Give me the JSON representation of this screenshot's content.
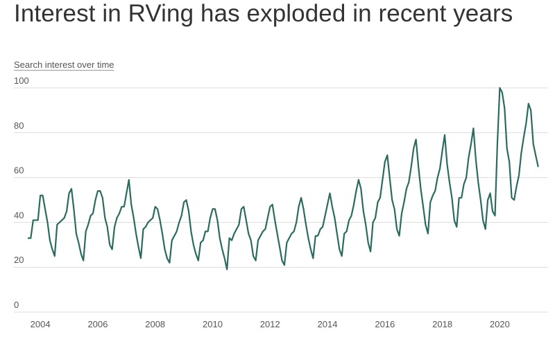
{
  "title": "Interest in RVing has exploded in recent years",
  "subtitle": "Search interest over time",
  "colors": {
    "line": "#2a6b5e",
    "grid": "#dcdcdc",
    "text": "#555555",
    "title": "#333333"
  },
  "chart_data": {
    "type": "line",
    "title": "Interest in RVing has exploded in recent years",
    "subtitle": "Search interest over time",
    "xlabel": "",
    "ylabel": "",
    "ylim": [
      0,
      100
    ],
    "xlim": [
      "2003-06",
      "2021-06"
    ],
    "grid": true,
    "legend": "none",
    "y_ticks": [
      0,
      20,
      40,
      60,
      80,
      100
    ],
    "x_ticks": [
      "2004",
      "2006",
      "2008",
      "2010",
      "2012",
      "2014",
      "2016",
      "2018",
      "2020"
    ],
    "x": [
      "2003-08",
      "2003-09",
      "2003-10",
      "2003-11",
      "2003-12",
      "2004-01",
      "2004-02",
      "2004-03",
      "2004-04",
      "2004-05",
      "2004-06",
      "2004-07",
      "2004-08",
      "2004-09",
      "2004-10",
      "2004-11",
      "2004-12",
      "2005-01",
      "2005-02",
      "2005-03",
      "2005-04",
      "2005-05",
      "2005-06",
      "2005-07",
      "2005-08",
      "2005-09",
      "2005-10",
      "2005-11",
      "2005-12",
      "2006-01",
      "2006-02",
      "2006-03",
      "2006-04",
      "2006-05",
      "2006-06",
      "2006-07",
      "2006-08",
      "2006-09",
      "2006-10",
      "2006-11",
      "2006-12",
      "2007-01",
      "2007-02",
      "2007-03",
      "2007-04",
      "2007-05",
      "2007-06",
      "2007-07",
      "2007-08",
      "2007-09",
      "2007-10",
      "2007-11",
      "2007-12",
      "2008-01",
      "2008-02",
      "2008-03",
      "2008-04",
      "2008-05",
      "2008-06",
      "2008-07",
      "2008-08",
      "2008-09",
      "2008-10",
      "2008-11",
      "2008-12",
      "2009-01",
      "2009-02",
      "2009-03",
      "2009-04",
      "2009-05",
      "2009-06",
      "2009-07",
      "2009-08",
      "2009-09",
      "2009-10",
      "2009-11",
      "2009-12",
      "2010-01",
      "2010-02",
      "2010-03",
      "2010-04",
      "2010-05",
      "2010-06",
      "2010-07",
      "2010-08",
      "2010-09",
      "2010-10",
      "2010-11",
      "2010-12",
      "2011-01",
      "2011-02",
      "2011-03",
      "2011-04",
      "2011-05",
      "2011-06",
      "2011-07",
      "2011-08",
      "2011-09",
      "2011-10",
      "2011-11",
      "2011-12",
      "2012-01",
      "2012-02",
      "2012-03",
      "2012-04",
      "2012-05",
      "2012-06",
      "2012-07",
      "2012-08",
      "2012-09",
      "2012-10",
      "2012-11",
      "2012-12",
      "2013-01",
      "2013-02",
      "2013-03",
      "2013-04",
      "2013-05",
      "2013-06",
      "2013-07",
      "2013-08",
      "2013-09",
      "2013-10",
      "2013-11",
      "2013-12",
      "2014-01",
      "2014-02",
      "2014-03",
      "2014-04",
      "2014-05",
      "2014-06",
      "2014-07",
      "2014-08",
      "2014-09",
      "2014-10",
      "2014-11",
      "2014-12",
      "2015-01",
      "2015-02",
      "2015-03",
      "2015-04",
      "2015-05",
      "2015-06",
      "2015-07",
      "2015-08",
      "2015-09",
      "2015-10",
      "2015-11",
      "2015-12",
      "2016-01",
      "2016-02",
      "2016-03",
      "2016-04",
      "2016-05",
      "2016-06",
      "2016-07",
      "2016-08",
      "2016-09",
      "2016-10",
      "2016-11",
      "2016-12",
      "2017-01",
      "2017-02",
      "2017-03",
      "2017-04",
      "2017-05",
      "2017-06",
      "2017-07",
      "2017-08",
      "2017-09",
      "2017-10",
      "2017-11",
      "2017-12",
      "2018-01",
      "2018-02",
      "2018-03",
      "2018-04",
      "2018-05",
      "2018-06",
      "2018-07",
      "2018-08",
      "2018-09",
      "2018-10",
      "2018-11",
      "2018-12",
      "2019-01",
      "2019-02",
      "2019-03",
      "2019-04",
      "2019-05",
      "2019-06",
      "2019-07",
      "2019-08",
      "2019-09",
      "2019-10",
      "2019-11",
      "2019-12",
      "2020-01",
      "2020-02",
      "2020-03",
      "2020-04",
      "2020-05",
      "2020-06",
      "2020-07",
      "2020-08",
      "2020-09",
      "2020-10",
      "2020-11",
      "2020-12",
      "2021-01",
      "2021-02",
      "2021-03",
      "2021-04",
      "2021-05"
    ],
    "series": [
      {
        "values": [
          33,
          33,
          41,
          41,
          41,
          52,
          52,
          46,
          40,
          32,
          28,
          25,
          39,
          40,
          41,
          42,
          45,
          53,
          55,
          46,
          35,
          31,
          26,
          23,
          36,
          39,
          43,
          44,
          50,
          54,
          54,
          51,
          42,
          38,
          30,
          28,
          38,
          42,
          44,
          47,
          47,
          53,
          59,
          48,
          42,
          35,
          29,
          24,
          37,
          38,
          40,
          41,
          42,
          47,
          46,
          41,
          35,
          28,
          24,
          22,
          32,
          34,
          36,
          40,
          43,
          49,
          50,
          45,
          36,
          30,
          26,
          23,
          31,
          32,
          36,
          36,
          42,
          46,
          46,
          41,
          33,
          28,
          24,
          19,
          33,
          32,
          35,
          37,
          39,
          46,
          47,
          41,
          35,
          32,
          25,
          23,
          32,
          34,
          36,
          37,
          42,
          47,
          48,
          41,
          35,
          29,
          23,
          21,
          31,
          33,
          35,
          36,
          40,
          47,
          51,
          46,
          39,
          33,
          28,
          24,
          34,
          34,
          37,
          38,
          43,
          48,
          53,
          47,
          42,
          35,
          28,
          25,
          35,
          36,
          41,
          43,
          48,
          54,
          59,
          55,
          45,
          39,
          31,
          27,
          40,
          42,
          49,
          51,
          59,
          67,
          70,
          60,
          50,
          46,
          37,
          34,
          44,
          49,
          55,
          58,
          65,
          73,
          77,
          65,
          55,
          47,
          39,
          35,
          49,
          52,
          54,
          60,
          64,
          72,
          79,
          66,
          58,
          51,
          41,
          38,
          51,
          51,
          57,
          60,
          69,
          75,
          82,
          68,
          58,
          50,
          41,
          37,
          50,
          53,
          45,
          43,
          75,
          100,
          98,
          91,
          73,
          67,
          51,
          50,
          56,
          61,
          71,
          78,
          84,
          93,
          90,
          75,
          70,
          65
        ]
      }
    ]
  }
}
